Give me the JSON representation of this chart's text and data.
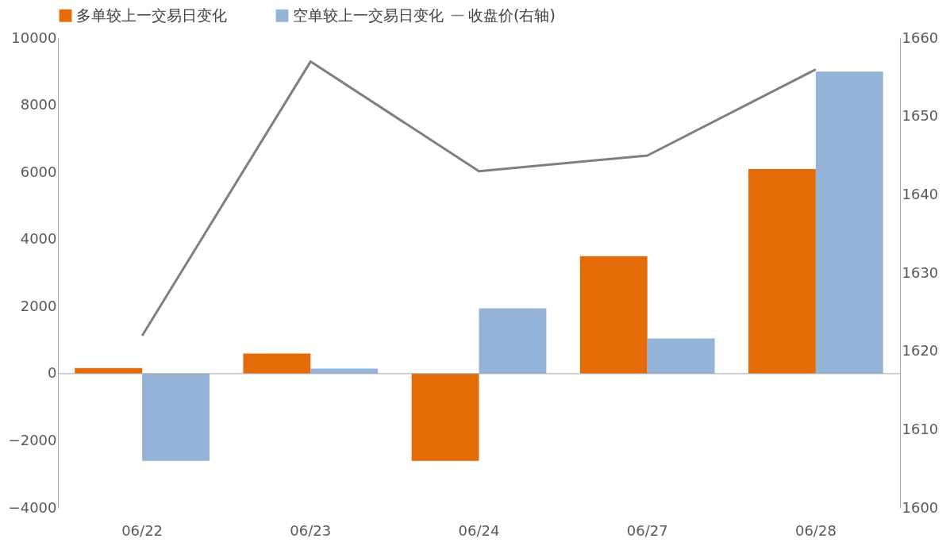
{
  "chart_data": {
    "type": "bar",
    "categories": [
      "06/22",
      "06/23",
      "06/24",
      "06/27",
      "06/28"
    ],
    "series": [
      {
        "name": "多单较上一交易日变化",
        "color": "#e36c09",
        "values": [
          170,
          600,
          -2600,
          3500,
          6100
        ]
      },
      {
        "name": "空单较上一交易日变化",
        "color": "#95b3d7",
        "values": [
          -2600,
          150,
          1950,
          1050,
          9000
        ]
      },
      {
        "name": "收盘价(右轴)",
        "type": "line",
        "axis": "y2",
        "color": "#7f7f7f",
        "values": [
          1622,
          1657,
          1643,
          1645,
          1656
        ]
      }
    ],
    "ylim": [
      -4000,
      10000
    ],
    "yticks": [
      -4000,
      -2000,
      0,
      2000,
      4000,
      6000,
      8000,
      10000
    ],
    "y2lim": [
      1600,
      1660
    ],
    "y2ticks": [
      1600,
      1610,
      1620,
      1630,
      1640,
      1650,
      1660
    ],
    "ref_lines": [
      {
        "axis": "y",
        "value": 0,
        "color": "#a6a6a6"
      }
    ],
    "grid": false,
    "legend": "top"
  }
}
